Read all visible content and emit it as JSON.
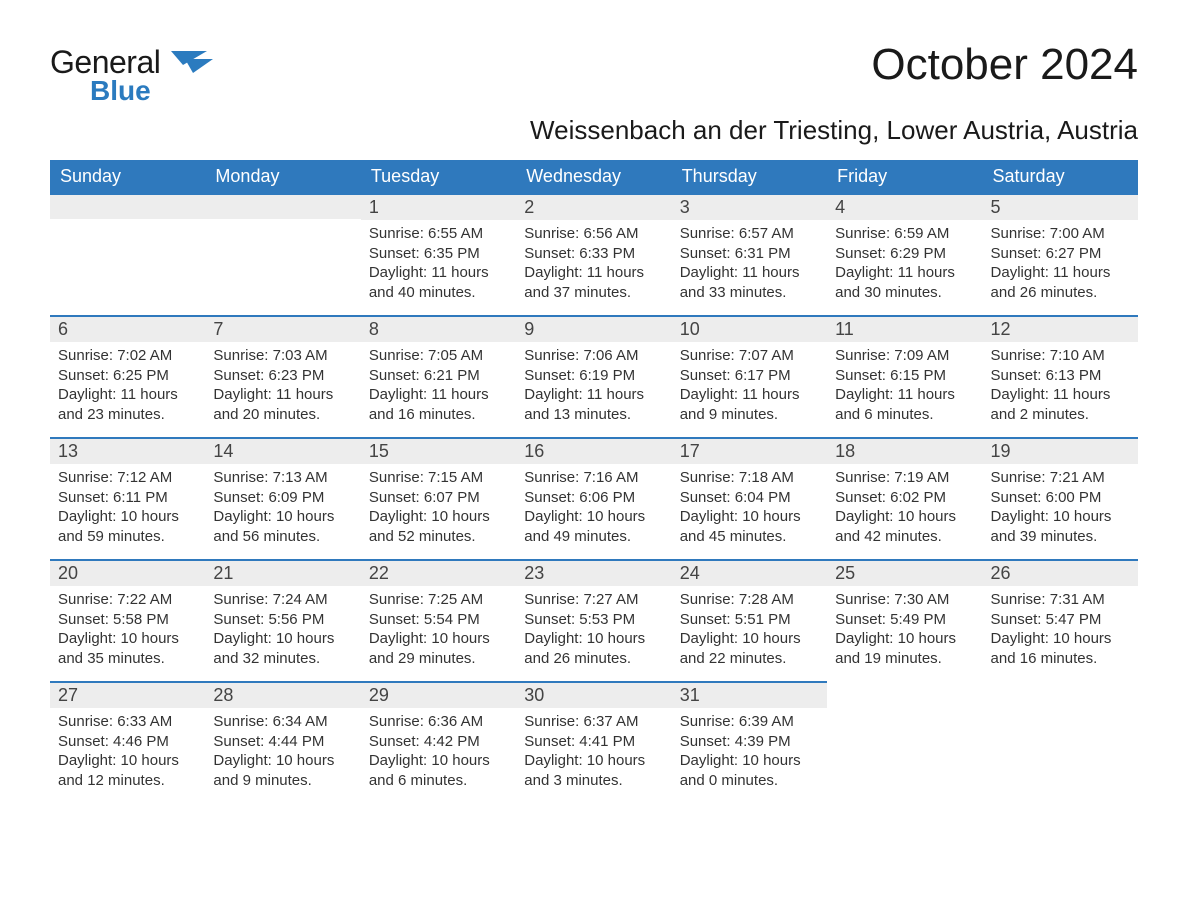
{
  "brand": {
    "general": "General",
    "blue": "Blue"
  },
  "title": "October 2024",
  "location": "Weissenbach an der Triesting, Lower Austria, Austria",
  "colors": {
    "header_bg": "#2f79bd",
    "header_text": "#ffffff",
    "daynum_bg": "#ededed",
    "top_border": "#2f79bd",
    "body_bg": "#ffffff",
    "text": "#333333",
    "logo_blue": "#2b7bbf"
  },
  "weekdays": [
    "Sunday",
    "Monday",
    "Tuesday",
    "Wednesday",
    "Thursday",
    "Friday",
    "Saturday"
  ],
  "weeks": [
    [
      {
        "empty": true
      },
      {
        "empty": true
      },
      {
        "num": "1",
        "sunrise": "Sunrise: 6:55 AM",
        "sunset": "Sunset: 6:35 PM",
        "daylight1": "Daylight: 11 hours",
        "daylight2": "and 40 minutes."
      },
      {
        "num": "2",
        "sunrise": "Sunrise: 6:56 AM",
        "sunset": "Sunset: 6:33 PM",
        "daylight1": "Daylight: 11 hours",
        "daylight2": "and 37 minutes."
      },
      {
        "num": "3",
        "sunrise": "Sunrise: 6:57 AM",
        "sunset": "Sunset: 6:31 PM",
        "daylight1": "Daylight: 11 hours",
        "daylight2": "and 33 minutes."
      },
      {
        "num": "4",
        "sunrise": "Sunrise: 6:59 AM",
        "sunset": "Sunset: 6:29 PM",
        "daylight1": "Daylight: 11 hours",
        "daylight2": "and 30 minutes."
      },
      {
        "num": "5",
        "sunrise": "Sunrise: 7:00 AM",
        "sunset": "Sunset: 6:27 PM",
        "daylight1": "Daylight: 11 hours",
        "daylight2": "and 26 minutes."
      }
    ],
    [
      {
        "num": "6",
        "sunrise": "Sunrise: 7:02 AM",
        "sunset": "Sunset: 6:25 PM",
        "daylight1": "Daylight: 11 hours",
        "daylight2": "and 23 minutes."
      },
      {
        "num": "7",
        "sunrise": "Sunrise: 7:03 AM",
        "sunset": "Sunset: 6:23 PM",
        "daylight1": "Daylight: 11 hours",
        "daylight2": "and 20 minutes."
      },
      {
        "num": "8",
        "sunrise": "Sunrise: 7:05 AM",
        "sunset": "Sunset: 6:21 PM",
        "daylight1": "Daylight: 11 hours",
        "daylight2": "and 16 minutes."
      },
      {
        "num": "9",
        "sunrise": "Sunrise: 7:06 AM",
        "sunset": "Sunset: 6:19 PM",
        "daylight1": "Daylight: 11 hours",
        "daylight2": "and 13 minutes."
      },
      {
        "num": "10",
        "sunrise": "Sunrise: 7:07 AM",
        "sunset": "Sunset: 6:17 PM",
        "daylight1": "Daylight: 11 hours",
        "daylight2": "and 9 minutes."
      },
      {
        "num": "11",
        "sunrise": "Sunrise: 7:09 AM",
        "sunset": "Sunset: 6:15 PM",
        "daylight1": "Daylight: 11 hours",
        "daylight2": "and 6 minutes."
      },
      {
        "num": "12",
        "sunrise": "Sunrise: 7:10 AM",
        "sunset": "Sunset: 6:13 PM",
        "daylight1": "Daylight: 11 hours",
        "daylight2": "and 2 minutes."
      }
    ],
    [
      {
        "num": "13",
        "sunrise": "Sunrise: 7:12 AM",
        "sunset": "Sunset: 6:11 PM",
        "daylight1": "Daylight: 10 hours",
        "daylight2": "and 59 minutes."
      },
      {
        "num": "14",
        "sunrise": "Sunrise: 7:13 AM",
        "sunset": "Sunset: 6:09 PM",
        "daylight1": "Daylight: 10 hours",
        "daylight2": "and 56 minutes."
      },
      {
        "num": "15",
        "sunrise": "Sunrise: 7:15 AM",
        "sunset": "Sunset: 6:07 PM",
        "daylight1": "Daylight: 10 hours",
        "daylight2": "and 52 minutes."
      },
      {
        "num": "16",
        "sunrise": "Sunrise: 7:16 AM",
        "sunset": "Sunset: 6:06 PM",
        "daylight1": "Daylight: 10 hours",
        "daylight2": "and 49 minutes."
      },
      {
        "num": "17",
        "sunrise": "Sunrise: 7:18 AM",
        "sunset": "Sunset: 6:04 PM",
        "daylight1": "Daylight: 10 hours",
        "daylight2": "and 45 minutes."
      },
      {
        "num": "18",
        "sunrise": "Sunrise: 7:19 AM",
        "sunset": "Sunset: 6:02 PM",
        "daylight1": "Daylight: 10 hours",
        "daylight2": "and 42 minutes."
      },
      {
        "num": "19",
        "sunrise": "Sunrise: 7:21 AM",
        "sunset": "Sunset: 6:00 PM",
        "daylight1": "Daylight: 10 hours",
        "daylight2": "and 39 minutes."
      }
    ],
    [
      {
        "num": "20",
        "sunrise": "Sunrise: 7:22 AM",
        "sunset": "Sunset: 5:58 PM",
        "daylight1": "Daylight: 10 hours",
        "daylight2": "and 35 minutes."
      },
      {
        "num": "21",
        "sunrise": "Sunrise: 7:24 AM",
        "sunset": "Sunset: 5:56 PM",
        "daylight1": "Daylight: 10 hours",
        "daylight2": "and 32 minutes."
      },
      {
        "num": "22",
        "sunrise": "Sunrise: 7:25 AM",
        "sunset": "Sunset: 5:54 PM",
        "daylight1": "Daylight: 10 hours",
        "daylight2": "and 29 minutes."
      },
      {
        "num": "23",
        "sunrise": "Sunrise: 7:27 AM",
        "sunset": "Sunset: 5:53 PM",
        "daylight1": "Daylight: 10 hours",
        "daylight2": "and 26 minutes."
      },
      {
        "num": "24",
        "sunrise": "Sunrise: 7:28 AM",
        "sunset": "Sunset: 5:51 PM",
        "daylight1": "Daylight: 10 hours",
        "daylight2": "and 22 minutes."
      },
      {
        "num": "25",
        "sunrise": "Sunrise: 7:30 AM",
        "sunset": "Sunset: 5:49 PM",
        "daylight1": "Daylight: 10 hours",
        "daylight2": "and 19 minutes."
      },
      {
        "num": "26",
        "sunrise": "Sunrise: 7:31 AM",
        "sunset": "Sunset: 5:47 PM",
        "daylight1": "Daylight: 10 hours",
        "daylight2": "and 16 minutes."
      }
    ],
    [
      {
        "num": "27",
        "sunrise": "Sunrise: 6:33 AM",
        "sunset": "Sunset: 4:46 PM",
        "daylight1": "Daylight: 10 hours",
        "daylight2": "and 12 minutes."
      },
      {
        "num": "28",
        "sunrise": "Sunrise: 6:34 AM",
        "sunset": "Sunset: 4:44 PM",
        "daylight1": "Daylight: 10 hours",
        "daylight2": "and 9 minutes."
      },
      {
        "num": "29",
        "sunrise": "Sunrise: 6:36 AM",
        "sunset": "Sunset: 4:42 PM",
        "daylight1": "Daylight: 10 hours",
        "daylight2": "and 6 minutes."
      },
      {
        "num": "30",
        "sunrise": "Sunrise: 6:37 AM",
        "sunset": "Sunset: 4:41 PM",
        "daylight1": "Daylight: 10 hours",
        "daylight2": "and 3 minutes."
      },
      {
        "num": "31",
        "sunrise": "Sunrise: 6:39 AM",
        "sunset": "Sunset: 4:39 PM",
        "daylight1": "Daylight: 10 hours",
        "daylight2": "and 0 minutes."
      },
      {
        "blank": true
      },
      {
        "blank": true
      }
    ]
  ]
}
